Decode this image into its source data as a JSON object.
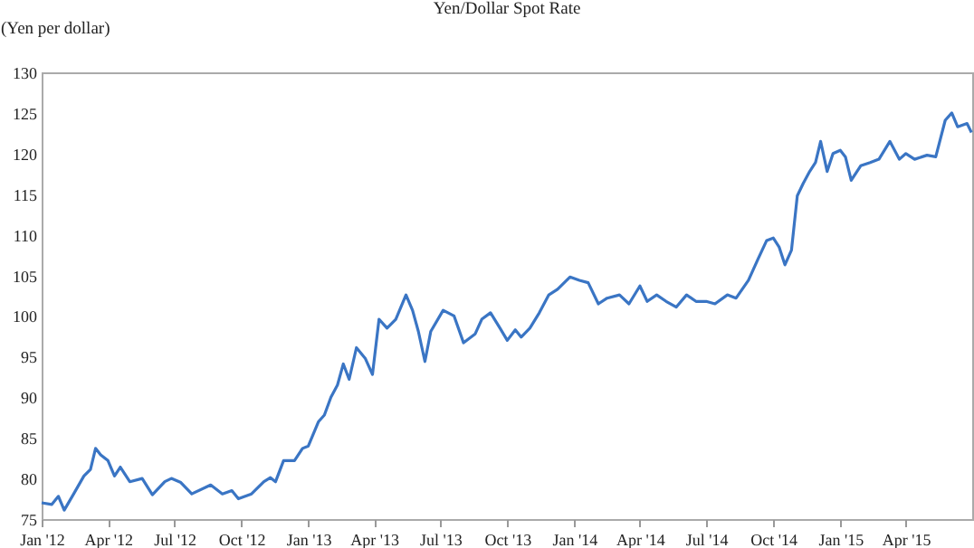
{
  "chart_data": {
    "type": "line",
    "title": "Yen/Dollar Spot Rate",
    "ylabel": "(Yen per dollar)",
    "x": [
      "2012-01-01",
      "2012-01-15",
      "2012-01-24",
      "2012-02-01",
      "2012-02-14",
      "2012-02-28",
      "2012-03-08",
      "2012-03-15",
      "2012-03-22",
      "2012-04-01",
      "2012-04-10",
      "2012-04-18",
      "2012-05-01",
      "2012-05-18",
      "2012-06-01",
      "2012-06-18",
      "2012-06-27",
      "2012-07-10",
      "2012-07-25",
      "2012-08-20",
      "2012-09-05",
      "2012-09-18",
      "2012-09-27",
      "2012-10-15",
      "2012-11-01",
      "2012-11-10",
      "2012-11-17",
      "2012-11-28",
      "2012-12-13",
      "2012-12-24",
      "2013-01-01",
      "2013-01-15",
      "2013-01-23",
      "2013-02-01",
      "2013-02-10",
      "2013-02-18",
      "2013-02-26",
      "2013-03-08",
      "2013-03-20",
      "2013-03-30",
      "2013-04-08",
      "2013-04-19",
      "2013-05-01",
      "2013-05-15",
      "2013-05-24",
      "2013-06-01",
      "2013-06-10",
      "2013-06-18",
      "2013-07-05",
      "2013-07-20",
      "2013-08-02",
      "2013-08-18",
      "2013-08-27",
      "2013-09-08",
      "2013-09-21",
      "2013-10-01",
      "2013-10-12",
      "2013-10-20",
      "2013-11-01",
      "2013-11-14",
      "2013-11-27",
      "2013-12-09",
      "2013-12-26",
      "2014-01-08",
      "2014-01-20",
      "2014-02-03",
      "2014-02-15",
      "2014-03-04",
      "2014-03-17",
      "2014-04-01",
      "2014-04-11",
      "2014-04-24",
      "2014-05-07",
      "2014-05-21",
      "2014-06-04",
      "2014-06-17",
      "2014-07-01",
      "2014-07-13",
      "2014-07-30",
      "2014-08-11",
      "2014-08-28",
      "2014-09-10",
      "2014-09-22",
      "2014-10-01",
      "2014-10-09",
      "2014-10-17",
      "2014-10-26",
      "2014-11-03",
      "2014-11-11",
      "2014-11-20",
      "2014-11-28",
      "2014-12-05",
      "2014-12-14",
      "2014-12-22",
      "2015-01-01",
      "2015-01-08",
      "2015-01-16",
      "2015-01-29",
      "2015-02-11",
      "2015-02-23",
      "2015-03-10",
      "2015-03-23",
      "2015-04-01",
      "2015-04-13",
      "2015-04-30",
      "2015-05-12",
      "2015-05-25",
      "2015-06-03",
      "2015-06-11",
      "2015-06-24",
      "2015-06-30"
    ],
    "series": [
      {
        "color": "#3a75c4",
        "values": [
          77.0,
          76.8,
          77.8,
          76.1,
          78.1,
          80.3,
          81.1,
          83.7,
          82.9,
          82.2,
          80.3,
          81.4,
          79.6,
          80.0,
          78.0,
          79.6,
          80.0,
          79.5,
          78.1,
          79.2,
          78.1,
          78.5,
          77.5,
          78.1,
          79.6,
          80.1,
          79.6,
          82.2,
          82.2,
          83.7,
          84.0,
          87.0,
          87.8,
          90.0,
          91.5,
          94.1,
          92.2,
          96.1,
          94.8,
          92.8,
          99.6,
          98.5,
          99.6,
          102.6,
          100.7,
          98.1,
          94.4,
          98.1,
          100.7,
          100.0,
          96.7,
          97.8,
          99.6,
          100.4,
          98.5,
          97.0,
          98.3,
          97.4,
          98.5,
          100.4,
          102.6,
          103.3,
          104.8,
          104.4,
          104.1,
          101.5,
          102.2,
          102.6,
          101.5,
          103.7,
          101.8,
          102.6,
          101.8,
          101.1,
          102.6,
          101.8,
          101.8,
          101.5,
          102.6,
          102.2,
          104.4,
          107.0,
          109.3,
          109.6,
          108.5,
          106.3,
          108.1,
          114.8,
          116.3,
          117.8,
          118.9,
          121.5,
          117.8,
          120.0,
          120.4,
          119.6,
          116.7,
          118.5,
          118.9,
          119.3,
          121.5,
          119.3,
          120.0,
          119.3,
          119.8,
          119.6,
          124.1,
          125.0,
          123.3,
          123.7,
          122.6
        ]
      }
    ],
    "xlim": [
      "2012-01-01",
      "2015-07-01"
    ],
    "xticks": [
      {
        "value": "2012-01-01",
        "label": "Jan '12"
      },
      {
        "value": "2012-04-01",
        "label": "Apr '12"
      },
      {
        "value": "2012-07-01",
        "label": "Jul '12"
      },
      {
        "value": "2012-10-01",
        "label": "Oct '12"
      },
      {
        "value": "2013-01-01",
        "label": "Jan '13"
      },
      {
        "value": "2013-04-01",
        "label": "Apr '13"
      },
      {
        "value": "2013-07-01",
        "label": "Jul '13"
      },
      {
        "value": "2013-10-01",
        "label": "Oct '13"
      },
      {
        "value": "2014-01-01",
        "label": "Jan '14"
      },
      {
        "value": "2014-04-01",
        "label": "Apr '14"
      },
      {
        "value": "2014-07-01",
        "label": "Jul '14"
      },
      {
        "value": "2014-10-01",
        "label": "Oct '14"
      },
      {
        "value": "2015-01-01",
        "label": "Jan '15"
      },
      {
        "value": "2015-04-01",
        "label": "Apr '15"
      }
    ],
    "ylim": [
      75,
      130
    ],
    "yticks": [
      75,
      80,
      85,
      90,
      95,
      100,
      105,
      110,
      115,
      120,
      125,
      130
    ],
    "grid": false,
    "marker": "none",
    "line_style": "solid"
  }
}
